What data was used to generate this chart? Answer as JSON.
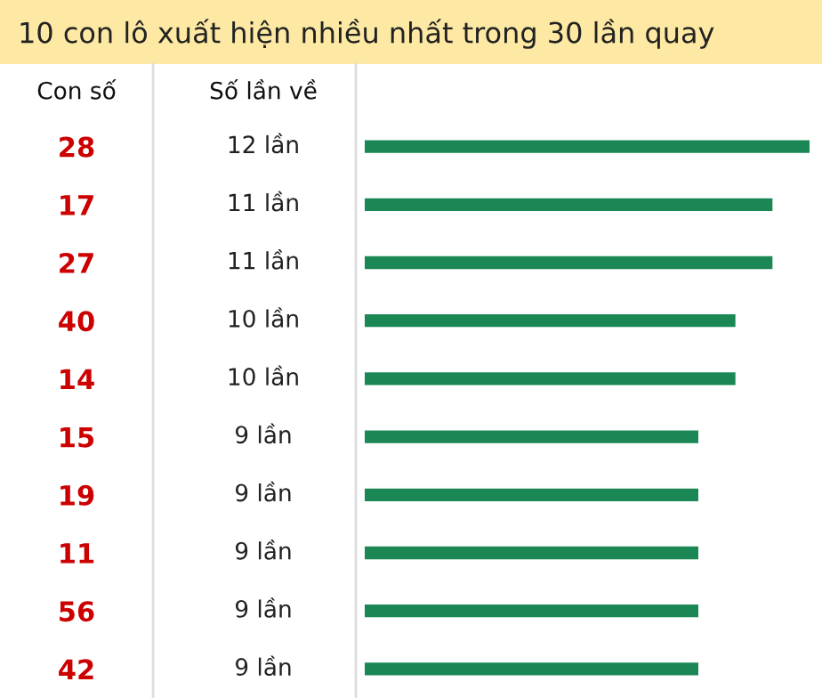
{
  "chart_data": {
    "type": "bar",
    "orientation": "horizontal",
    "title": "10 con lô xuất hiện nhiều nhất trong 30 lần quay",
    "annotations": [
      "Con số",
      "Số lần về"
    ],
    "categories": [
      "28",
      "17",
      "27",
      "40",
      "14",
      "15",
      "19",
      "11",
      "56",
      "42"
    ],
    "series": [
      {
        "color": "#1a8754",
        "values": [
          12,
          11,
          11,
          10,
          10,
          9,
          9,
          9,
          9,
          9
        ],
        "value_labels": [
          "12 lần",
          "11 lần",
          "11 lần",
          "10 lần",
          "10 lần",
          "9 lần",
          "9 lần",
          "9 lần",
          "9 lần",
          "9 lần"
        ]
      }
    ],
    "legend": false,
    "grid": false
  }
}
